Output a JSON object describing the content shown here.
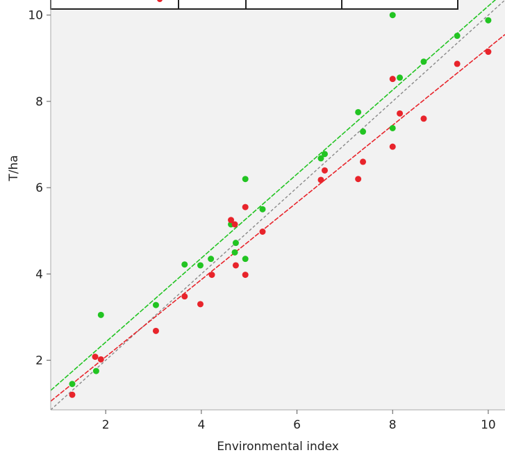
{
  "chart_data": {
    "type": "scatter",
    "xlabel": "Environmental index",
    "ylabel": "T/ha",
    "xlim": [
      0.85,
      10.35
    ],
    "ylim": [
      0.85,
      10.35
    ],
    "x_ticks": [
      2,
      4,
      6,
      8,
      10
    ],
    "y_ticks": [
      2,
      4,
      6,
      8,
      10
    ],
    "grid": false,
    "legend_visible": false,
    "colors": {
      "green": "#22c422",
      "red": "#e8242b",
      "reference": "#888888",
      "plot_bg": "#f2f2f2",
      "frame": "#aaaaaa",
      "legend_frame": "#222222"
    },
    "series": [
      {
        "color": "#22c422",
        "points": [
          [
            1.3,
            1.45
          ],
          [
            1.8,
            1.75
          ],
          [
            1.9,
            3.05
          ],
          [
            3.05,
            3.28
          ],
          [
            3.65,
            4.22
          ],
          [
            3.98,
            4.2
          ],
          [
            4.2,
            4.35
          ],
          [
            4.62,
            5.15
          ],
          [
            4.7,
            4.5
          ],
          [
            4.72,
            4.72
          ],
          [
            4.92,
            4.35
          ],
          [
            4.92,
            6.2
          ],
          [
            5.28,
            5.5
          ],
          [
            6.5,
            6.68
          ],
          [
            6.58,
            6.78
          ],
          [
            7.28,
            7.75
          ],
          [
            7.38,
            7.3
          ],
          [
            8.0,
            7.38
          ],
          [
            8.0,
            10.0
          ],
          [
            8.15,
            8.55
          ],
          [
            8.65,
            8.92
          ],
          [
            9.35,
            9.52
          ],
          [
            10.0,
            9.88
          ]
        ],
        "fit": {
          "x": [
            0.85,
            10.35
          ],
          "y": [
            1.3,
            10.55
          ]
        }
      },
      {
        "color": "#e8242b",
        "points": [
          [
            1.3,
            1.2
          ],
          [
            1.78,
            2.08
          ],
          [
            1.9,
            2.02
          ],
          [
            3.05,
            2.68
          ],
          [
            3.65,
            3.48
          ],
          [
            3.98,
            3.3
          ],
          [
            4.22,
            3.98
          ],
          [
            4.62,
            5.25
          ],
          [
            4.7,
            5.15
          ],
          [
            4.72,
            4.2
          ],
          [
            4.92,
            3.98
          ],
          [
            4.92,
            5.55
          ],
          [
            5.28,
            4.98
          ],
          [
            6.5,
            6.18
          ],
          [
            6.58,
            6.4
          ],
          [
            7.28,
            6.2
          ],
          [
            7.38,
            6.6
          ],
          [
            8.0,
            6.95
          ],
          [
            8.0,
            8.52
          ],
          [
            8.15,
            7.72
          ],
          [
            8.65,
            7.6
          ],
          [
            9.35,
            8.87
          ],
          [
            10.0,
            9.15
          ]
        ],
        "fit": {
          "x": [
            0.85,
            10.35
          ],
          "y": [
            1.05,
            9.55
          ]
        }
      }
    ],
    "reference_line": {
      "x": [
        0.85,
        10.35
      ],
      "y": [
        0.85,
        10.35
      ]
    }
  }
}
